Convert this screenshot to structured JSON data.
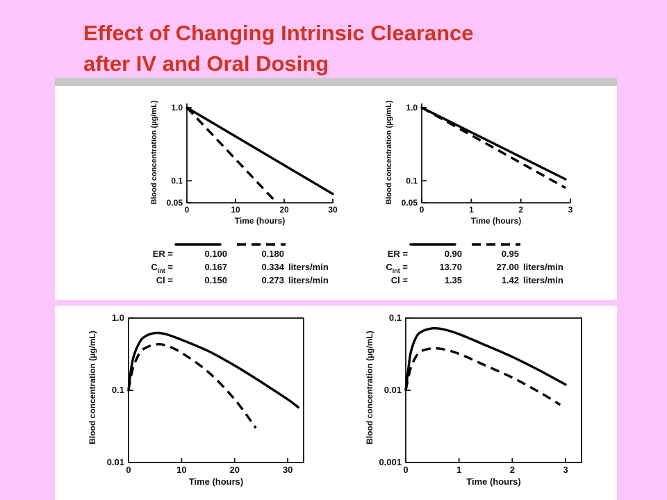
{
  "title": {
    "line1": "Effect of Changing Intrinsic Clearance",
    "line2": "after IV and Oral Dosing"
  },
  "colors": {
    "background": "#fcc6fc",
    "title": "#d2341f",
    "panel": "#ffffff",
    "ink": "#000000"
  },
  "chart_data": [
    {
      "type": "line",
      "ylabel": "Blood concentration (µg/mL)",
      "xlabel": "Time (hours)",
      "xlim": [
        0,
        30
      ],
      "ylim": [
        0.05,
        1.0
      ],
      "yscale": "log",
      "xticks": [
        "0",
        "10",
        "20",
        "30"
      ],
      "yticks": [
        "1.0",
        "0.1",
        "0.05"
      ],
      "series": [
        {
          "style": "solid",
          "x": [
            0,
            30
          ],
          "y": [
            1.0,
            0.066
          ]
        },
        {
          "style": "dashed",
          "x": [
            0,
            18
          ],
          "y": [
            1.0,
            0.054
          ]
        }
      ],
      "table": {
        "rows": [
          {
            "label": "ER =",
            "solid": "0.100",
            "dashed": "0.180",
            "unit": ""
          },
          {
            "label": "C",
            "sub": "int",
            "suffix": " =",
            "solid": "0.167",
            "dashed": "0.334",
            "unit": "liters/min"
          },
          {
            "label": "Cl =",
            "solid": "0.150",
            "dashed": "0.273",
            "unit": "liters/min"
          }
        ]
      }
    },
    {
      "type": "line",
      "ylabel": "Blood concentration (µg/mL)",
      "xlabel": "Time (hours)",
      "xlim": [
        0,
        3
      ],
      "ylim": [
        0.05,
        1.0
      ],
      "yscale": "log",
      "xticks": [
        "0",
        "1",
        "2",
        "3"
      ],
      "yticks": [
        "1.0",
        "0.1",
        "0.05"
      ],
      "series": [
        {
          "style": "solid",
          "x": [
            0,
            2.9
          ],
          "y": [
            1.0,
            0.105
          ]
        },
        {
          "style": "dashed",
          "x": [
            0,
            2.9
          ],
          "y": [
            1.0,
            0.08
          ]
        }
      ],
      "table": {
        "rows": [
          {
            "label": "ER =",
            "solid": "0.90",
            "dashed": "0.95",
            "unit": ""
          },
          {
            "label": "C",
            "sub": "int",
            "suffix": " =",
            "solid": "13.70",
            "dashed": "27.00",
            "unit": "liters/min"
          },
          {
            "label": "Cl =",
            "solid": "1.35",
            "dashed": "1.42",
            "unit": "liters/min"
          }
        ]
      }
    },
    {
      "type": "line",
      "ylabel": "Blood concentration (µg/mL)",
      "xlabel": "Time (hours)",
      "xlim": [
        0,
        33
      ],
      "ylim": [
        0.01,
        1.0
      ],
      "yscale": "log",
      "xticks": [
        "0",
        "10",
        "20",
        "30"
      ],
      "yticks": [
        "1.0",
        "0.1",
        "0.01"
      ],
      "series": [
        {
          "style": "solid",
          "x": [
            0,
            0.5,
            1,
            2,
            3,
            5,
            7,
            10,
            15,
            20,
            25,
            30,
            32
          ],
          "y": [
            0.1,
            0.2,
            0.3,
            0.45,
            0.55,
            0.62,
            0.6,
            0.5,
            0.35,
            0.22,
            0.13,
            0.075,
            0.058
          ]
        },
        {
          "style": "dashed",
          "x": [
            0,
            0.5,
            1,
            2,
            3,
            5,
            7,
            10,
            15,
            20,
            24
          ],
          "y": [
            0.1,
            0.16,
            0.22,
            0.32,
            0.38,
            0.43,
            0.42,
            0.33,
            0.18,
            0.075,
            0.03
          ]
        }
      ]
    },
    {
      "type": "line",
      "ylabel": "Blood concentration (µg/mL)",
      "xlabel": "Time (hours)",
      "xlim": [
        0,
        3.3
      ],
      "ylim": [
        0.001,
        0.1
      ],
      "yscale": "log",
      "xticks": [
        "0",
        "1",
        "2",
        "3"
      ],
      "yticks": [
        "0.1",
        "0.01",
        "0.001"
      ],
      "series": [
        {
          "style": "solid",
          "x": [
            0,
            0.05,
            0.1,
            0.2,
            0.3,
            0.5,
            0.7,
            1,
            1.5,
            2,
            2.5,
            3
          ],
          "y": [
            0.01,
            0.02,
            0.035,
            0.055,
            0.065,
            0.072,
            0.07,
            0.06,
            0.042,
            0.029,
            0.019,
            0.012
          ]
        },
        {
          "style": "dashed",
          "x": [
            0,
            0.05,
            0.1,
            0.2,
            0.3,
            0.5,
            0.7,
            1,
            1.5,
            2,
            2.5,
            2.9
          ],
          "y": [
            0.01,
            0.015,
            0.021,
            0.03,
            0.035,
            0.038,
            0.037,
            0.032,
            0.022,
            0.015,
            0.0095,
            0.0063
          ]
        }
      ]
    }
  ]
}
